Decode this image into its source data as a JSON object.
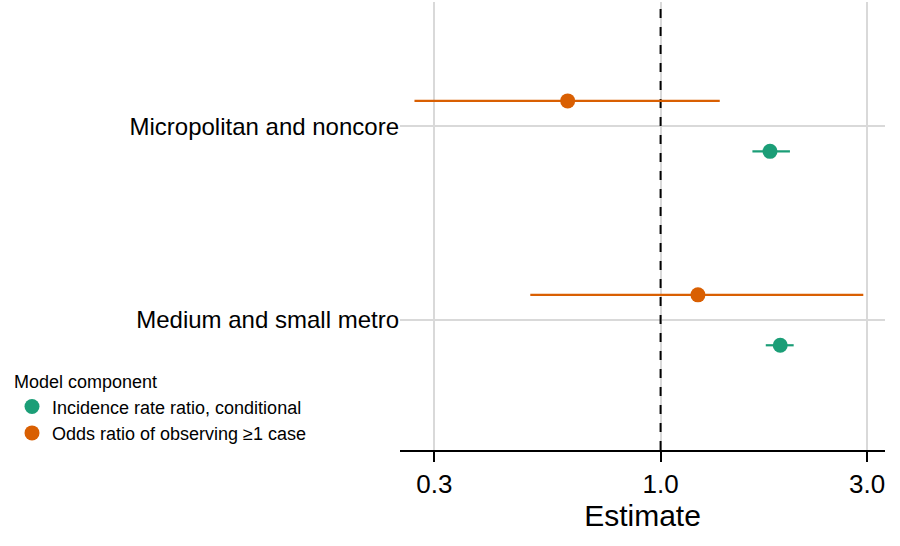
{
  "chart_data": {
    "type": "forest",
    "categories": [
      "Micropolitan and noncore",
      "Medium and small metro"
    ],
    "series": [
      {
        "name": "Incidence rate ratio, conditional",
        "color": "#1b9e77",
        "marker": "circle",
        "values": [
          1.79,
          1.89
        ],
        "lower": [
          1.63,
          1.75
        ],
        "upper": [
          1.99,
          2.03
        ]
      },
      {
        "name": "Odds ratio of observing ≥1 case",
        "color": "#d95f02",
        "marker": "circle",
        "values": [
          0.61,
          1.22
        ],
        "lower": [
          0.27,
          0.5
        ],
        "upper": [
          1.37,
          2.94
        ]
      }
    ],
    "x_label": "Estimate",
    "legend_title": "Model component",
    "xlim": [
      0.25,
      3.3
    ],
    "xticks": [
      0.3,
      {
        "value": 1,
        "label": "1.0"
      },
      {
        "value": 3,
        "label": "3.0"
      }
    ],
    "log": "x",
    "grid": true,
    "reference_line": 1,
    "legend": "bottom left"
  }
}
